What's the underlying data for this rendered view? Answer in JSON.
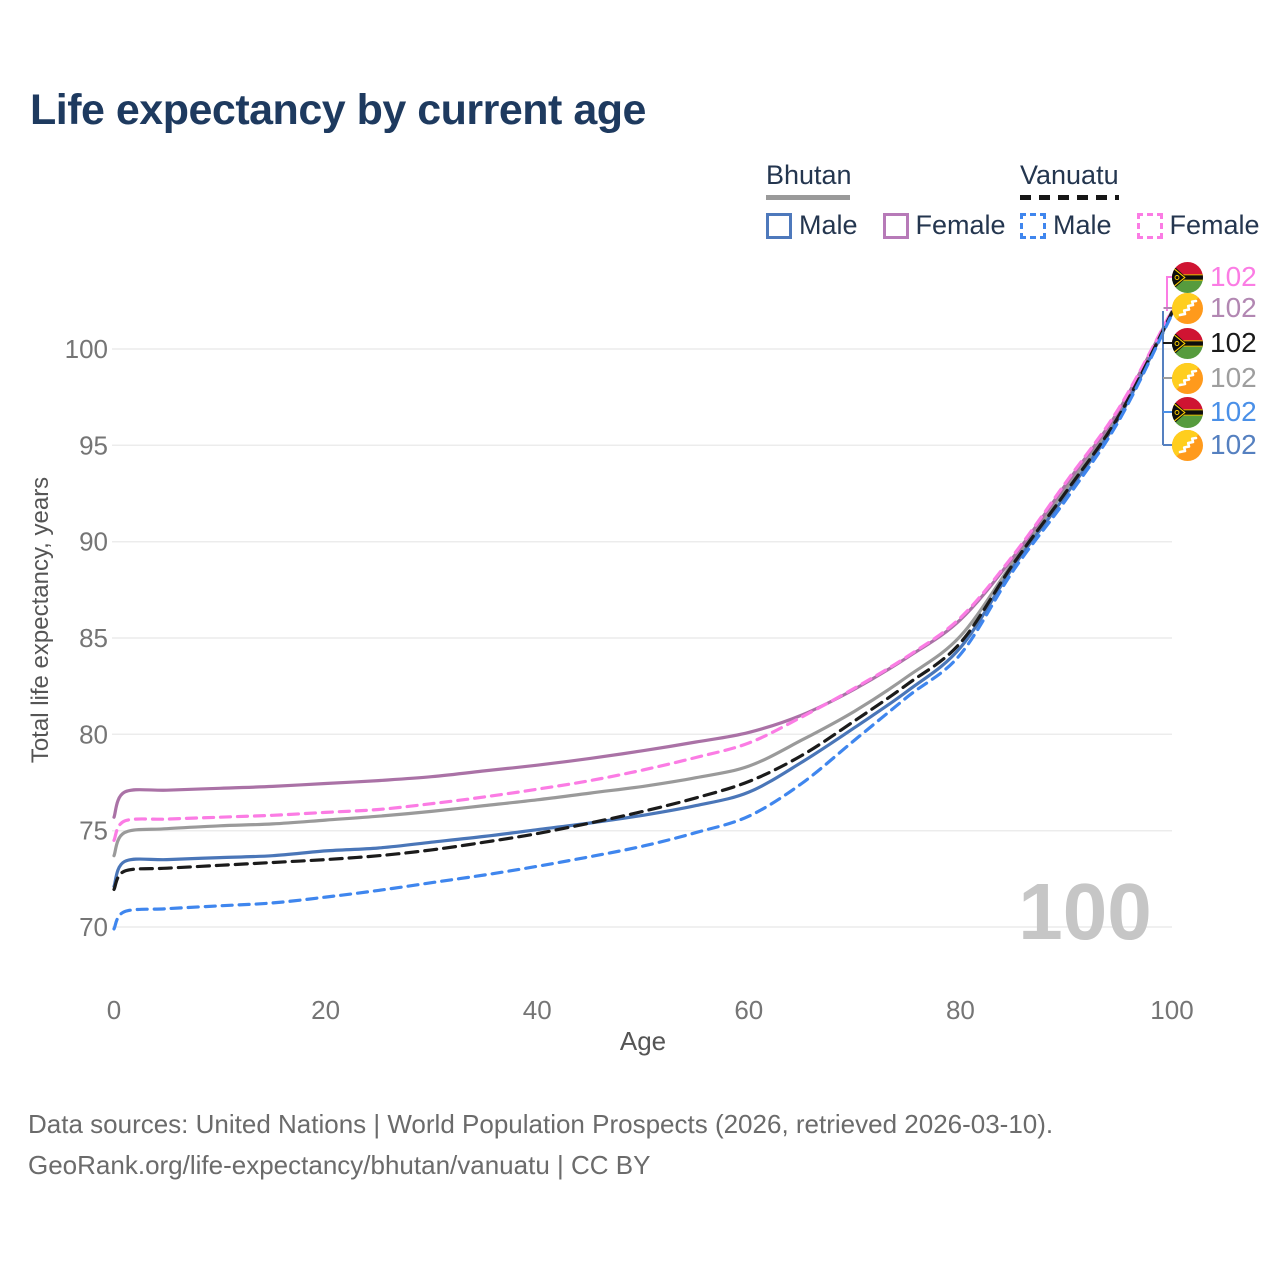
{
  "title": "Life expectancy by current age",
  "age_counter": "100",
  "legend": {
    "bhutan": {
      "label": "Bhutan",
      "male": "Male",
      "female": "Female",
      "line_color": "#9a9a9a",
      "male_color": "#4e79bc",
      "female_color": "#b77ab8"
    },
    "vanuatu": {
      "label": "Vanuatu",
      "male": "Male",
      "female": "Female",
      "line_color": "#161616",
      "male_color": "#3f86ee",
      "female_color": "#fb7ce4"
    }
  },
  "right_labels": [
    {
      "flag": "vanuatu",
      "value": "102",
      "color": "#fb7ce4"
    },
    {
      "flag": "bhutan",
      "value": "102",
      "color": "#b287b2"
    },
    {
      "flag": "vanuatu",
      "value": "102",
      "color": "#1a1a1a"
    },
    {
      "flag": "bhutan",
      "value": "102",
      "color": "#9e9e9e"
    },
    {
      "flag": "vanuatu",
      "value": "102",
      "color": "#4a90e8"
    },
    {
      "flag": "bhutan",
      "value": "102",
      "color": "#5580c0"
    }
  ],
  "footer": {
    "line1": "Data sources: United Nations | World Population Prospects (2026, retrieved 2026-03-10).",
    "line2": "GeoRank.org/life-expectancy/bhutan/vanuatu | CC BY"
  },
  "colors": {
    "title": "#1e3a5f",
    "legend": "#24364f",
    "gridline": "#ececec",
    "axis_text": "#757575",
    "axis_title": "#555555",
    "age": "#c6c6c6",
    "footer": "#6b6b6b",
    "flag_vanuatu_red": "#cf1432",
    "flag_vanuatu_green": "#569b3d",
    "flag_vanuatu_yellow": "#ffd100",
    "flag_bhutan_yellow": "#ffce1e",
    "flag_bhutan_orange": "#ff9a1c"
  },
  "chart_data": {
    "type": "line",
    "title": "Life expectancy by current age",
    "xlabel": "Age",
    "ylabel": "Total life expectancy, years",
    "xlim": [
      0,
      100
    ],
    "ylim": [
      68.5,
      103
    ],
    "xticks": [
      0,
      20,
      40,
      60,
      80,
      100
    ],
    "yticks": [
      70,
      75,
      80,
      85,
      90,
      95,
      100
    ],
    "grid": "horizontal",
    "legend_position": "top-right",
    "x": [
      0,
      1,
      5,
      10,
      15,
      20,
      25,
      30,
      35,
      40,
      45,
      50,
      55,
      60,
      65,
      70,
      75,
      80,
      85,
      90,
      95,
      100
    ],
    "series": [
      {
        "id": "bhutan-all",
        "name": "Bhutan (both sexes)",
        "country": "Bhutan",
        "sex": "Both",
        "line": "solid",
        "color": "#9a9a9a",
        "end_value": 102,
        "y": [
          73.7,
          74.9,
          75.1,
          75.25,
          75.35,
          75.55,
          75.75,
          76.0,
          76.3,
          76.6,
          76.95,
          77.3,
          77.75,
          78.35,
          79.7,
          81.2,
          83.0,
          85.1,
          88.95,
          92.75,
          96.65,
          101.9
        ]
      },
      {
        "id": "bhutan-female",
        "name": "Bhutan Female",
        "country": "Bhutan",
        "sex": "Female",
        "line": "solid",
        "color": "#aa72a6",
        "end_value": 102,
        "y": [
          75.7,
          77.0,
          77.1,
          77.2,
          77.3,
          77.45,
          77.6,
          77.8,
          78.1,
          78.4,
          78.75,
          79.15,
          79.6,
          80.1,
          81.0,
          82.35,
          84.0,
          85.95,
          89.2,
          93.0,
          96.85,
          101.95
        ]
      },
      {
        "id": "bhutan-male",
        "name": "Bhutan Male",
        "country": "Bhutan",
        "sex": "Male",
        "line": "solid",
        "color": "#4a76b8",
        "end_value": 102,
        "y": [
          72.1,
          73.4,
          73.5,
          73.6,
          73.7,
          73.95,
          74.1,
          74.4,
          74.7,
          75.05,
          75.4,
          75.8,
          76.3,
          77.0,
          78.55,
          80.35,
          82.25,
          84.5,
          88.7,
          92.45,
          96.45,
          101.85
        ]
      },
      {
        "id": "vanuatu-female",
        "name": "Vanuatu Female",
        "country": "Vanuatu",
        "sex": "Female",
        "line": "dashed",
        "dash": "10 7",
        "color": "#fb7ce4",
        "end_value": 102,
        "y": [
          74.5,
          75.5,
          75.6,
          75.7,
          75.8,
          75.95,
          76.1,
          76.4,
          76.75,
          77.15,
          77.6,
          78.15,
          78.8,
          79.55,
          80.9,
          82.4,
          84.05,
          86.05,
          89.3,
          93.1,
          96.95,
          102.0
        ]
      },
      {
        "id": "vanuatu-all",
        "name": "Vanuatu (both sexes)",
        "country": "Vanuatu",
        "sex": "Both",
        "line": "dashed",
        "dash": "12 7",
        "color": "#1b1b1b",
        "end_value": 102,
        "y": [
          71.95,
          72.9,
          73.05,
          73.2,
          73.35,
          73.5,
          73.7,
          74.0,
          74.4,
          74.85,
          75.4,
          76.0,
          76.7,
          77.55,
          78.9,
          80.7,
          82.6,
          84.75,
          88.85,
          92.6,
          96.55,
          101.9
        ]
      },
      {
        "id": "vanuatu-male",
        "name": "Vanuatu Male",
        "country": "Vanuatu",
        "sex": "Male",
        "line": "dashed",
        "dash": "10 7",
        "color": "#3f86ee",
        "end_value": 102,
        "y": [
          69.9,
          70.8,
          70.95,
          71.1,
          71.25,
          71.55,
          71.9,
          72.3,
          72.7,
          73.15,
          73.65,
          74.2,
          74.9,
          75.75,
          77.45,
          79.7,
          81.95,
          84.15,
          88.5,
          92.2,
          96.3,
          101.8
        ]
      }
    ]
  }
}
